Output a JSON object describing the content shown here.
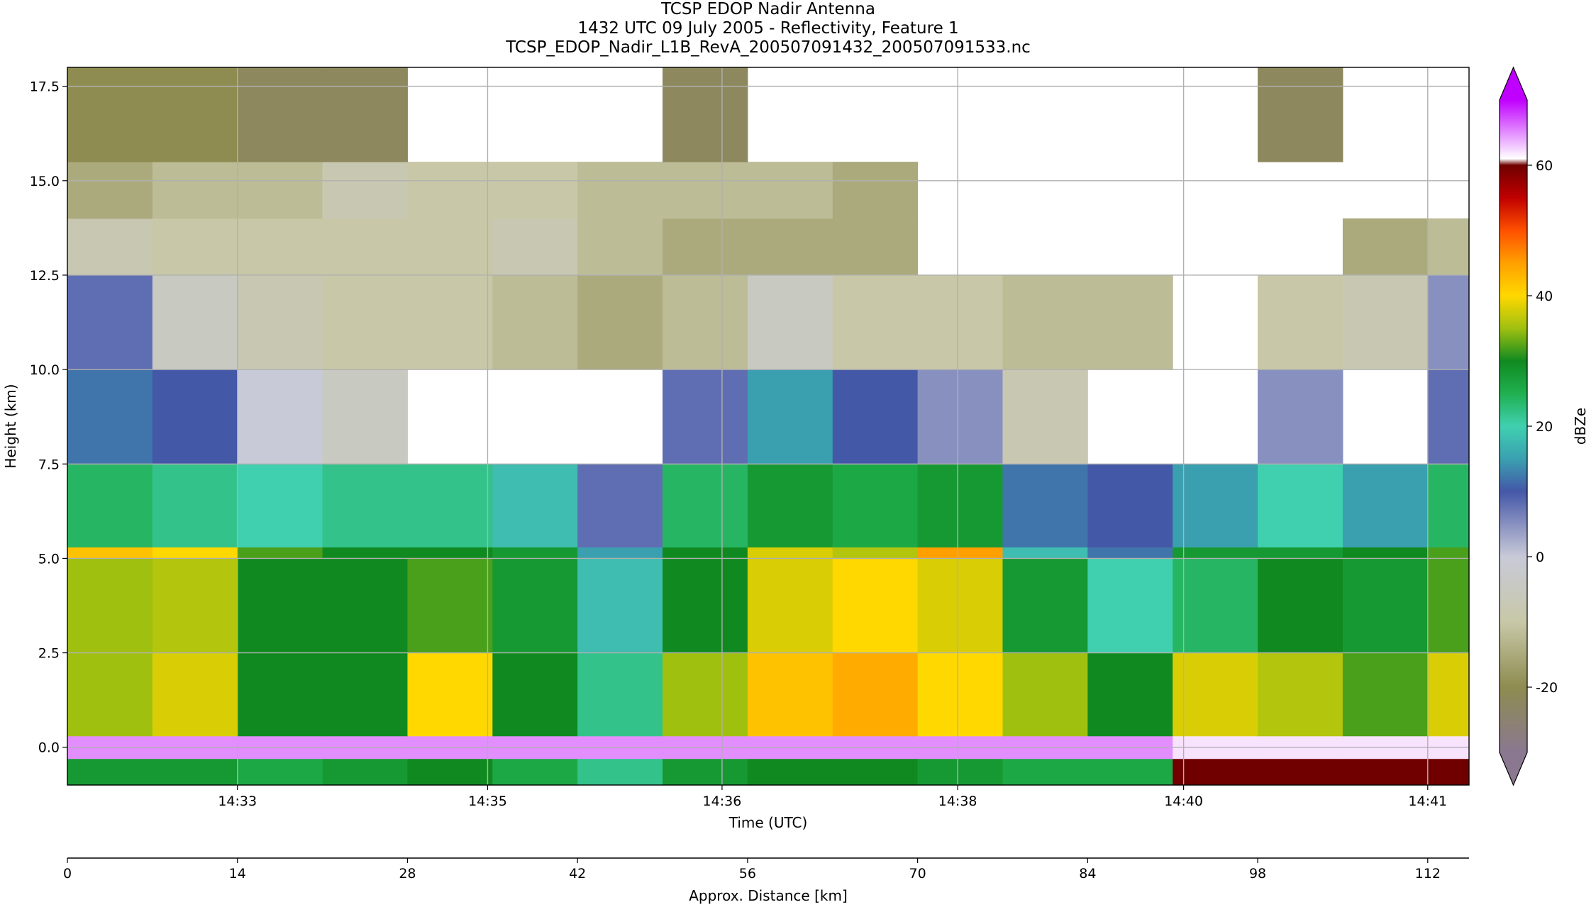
{
  "chart_data": {
    "type": "heatmap",
    "title": "TCSP EDOP Nadir Antenna",
    "subtitle": "1432 UTC 09 July 2005 - Reflectivity, Feature 1",
    "filename": "TCSP_EDOP_Nadir_L1B_RevA_200507091432_200507091533.nc",
    "x_label": "Time (UTC)",
    "x2_label": "Approx. Distance [km]",
    "y_label": "Height (km)",
    "colorbar_label": "dBZe",
    "xlim": [
      0,
      115.4
    ],
    "ylim": [
      -1,
      18
    ],
    "clim": [
      -30,
      70
    ],
    "xticks": [
      {
        "value": 14.0,
        "label": "14:33"
      },
      {
        "value": 34.6,
        "label": "14:35"
      },
      {
        "value": 53.9,
        "label": "14:36"
      },
      {
        "value": 73.3,
        "label": "14:38"
      },
      {
        "value": 91.9,
        "label": "14:40"
      },
      {
        "value": 112.0,
        "label": "14:41"
      }
    ],
    "x2ticks": [
      0,
      14,
      28,
      42,
      56,
      70,
      84,
      98,
      112
    ],
    "yticks": [
      {
        "value": 0,
        "label": "0.0"
      },
      {
        "value": 2.5,
        "label": "2.5"
      },
      {
        "value": 5,
        "label": "5.0"
      },
      {
        "value": 7.5,
        "label": "7.5"
      },
      {
        "value": 10,
        "label": "10.0"
      },
      {
        "value": 12.5,
        "label": "12.5"
      },
      {
        "value": 15,
        "label": "15.0"
      },
      {
        "value": 17.5,
        "label": "17.5"
      }
    ],
    "cticks": [
      -20,
      0,
      20,
      40,
      60
    ],
    "grid": true,
    "x_bins": [
      0,
      7,
      14,
      21,
      28,
      35,
      42,
      49,
      56,
      63,
      70,
      77,
      84,
      91,
      98,
      105,
      112,
      115.4
    ],
    "y_bins": [
      -1,
      -0.3,
      0.3,
      2.5,
      5,
      5.3,
      7.5,
      10,
      12.5,
      14,
      15.5,
      18
    ],
    "values": [
      [
        28,
        28,
        26,
        28,
        30,
        26,
        22,
        28,
        30,
        30,
        28,
        26,
        26,
        60,
        60,
        60,
        60
      ],
      [
        65,
        65,
        65,
        65,
        65,
        65,
        65,
        65,
        65,
        65,
        65,
        65,
        65,
        62,
        62,
        62,
        62
      ],
      [
        35,
        38,
        30,
        30,
        40,
        30,
        22,
        35,
        42,
        44,
        40,
        35,
        30,
        38,
        36,
        32,
        38
      ],
      [
        35,
        36,
        30,
        30,
        32,
        28,
        18,
        30,
        38,
        40,
        38,
        28,
        20,
        24,
        30,
        28,
        32
      ],
      [
        42,
        40,
        32,
        30,
        30,
        28,
        15,
        30,
        38,
        36,
        45,
        18,
        12,
        28,
        28,
        30,
        32
      ],
      [
        24,
        22,
        20,
        22,
        22,
        18,
        8,
        24,
        28,
        26,
        28,
        12,
        10,
        15,
        20,
        15,
        24
      ],
      [
        12,
        10,
        0,
        -5,
        null,
        null,
        null,
        8,
        15,
        10,
        5,
        -8,
        null,
        null,
        5,
        null,
        8
      ],
      [
        8,
        -5,
        -8,
        -10,
        -10,
        -12,
        -15,
        -12,
        -5,
        -10,
        -10,
        -12,
        -12,
        null,
        -10,
        -8,
        5
      ],
      [
        -8,
        -10,
        -10,
        -10,
        -10,
        -8,
        -12,
        -15,
        -15,
        -15,
        null,
        null,
        null,
        null,
        null,
        -15,
        -12
      ],
      [
        -15,
        -12,
        -12,
        -8,
        -10,
        -10,
        -12,
        -12,
        -12,
        -15,
        null,
        null,
        null,
        null,
        null,
        null,
        null
      ],
      [
        -20,
        -20,
        -22,
        -22,
        null,
        null,
        null,
        -22,
        null,
        null,
        null,
        null,
        null,
        null,
        -22,
        null,
        null
      ]
    ]
  }
}
